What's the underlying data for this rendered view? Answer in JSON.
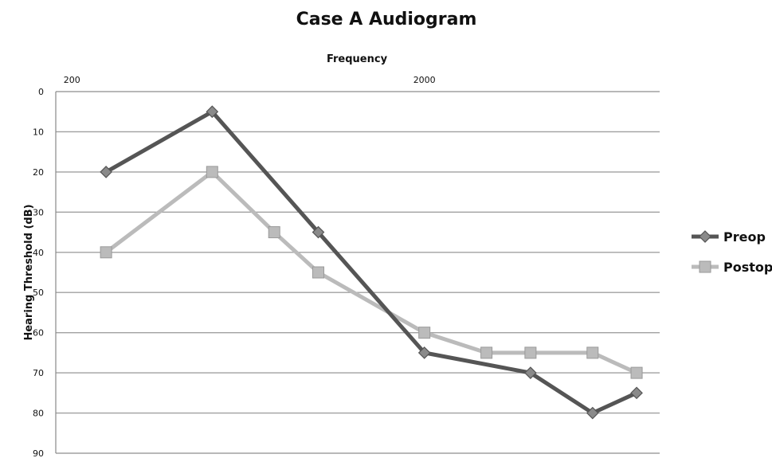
{
  "chart_data": {
    "type": "line",
    "title": "Case A Audiogram",
    "xlabel": "Frequency",
    "ylabel": "Hearing Threshold (dB)",
    "x_ticks": [
      "200",
      "2000"
    ],
    "x_scale": "log",
    "y_ticks": [
      "0",
      "10",
      "20",
      "30",
      "40",
      "50",
      "60",
      "70",
      "80",
      "90"
    ],
    "ylim": [
      0,
      90
    ],
    "y_inverted": true,
    "grid": true,
    "legend_position": "right",
    "series": [
      {
        "name": "Preop",
        "color": "#555555",
        "marker": "diamond",
        "x": [
          250,
          500,
          1000,
          2000,
          4000,
          6000,
          8000
        ],
        "values": [
          20,
          5,
          35,
          65,
          70,
          80,
          75
        ]
      },
      {
        "name": "Postop",
        "color": "#bbbbbb",
        "marker": "square",
        "x": [
          250,
          500,
          750,
          1000,
          2000,
          3000,
          4000,
          6000,
          8000
        ],
        "values": [
          40,
          20,
          35,
          45,
          60,
          65,
          65,
          65,
          70
        ]
      }
    ]
  }
}
